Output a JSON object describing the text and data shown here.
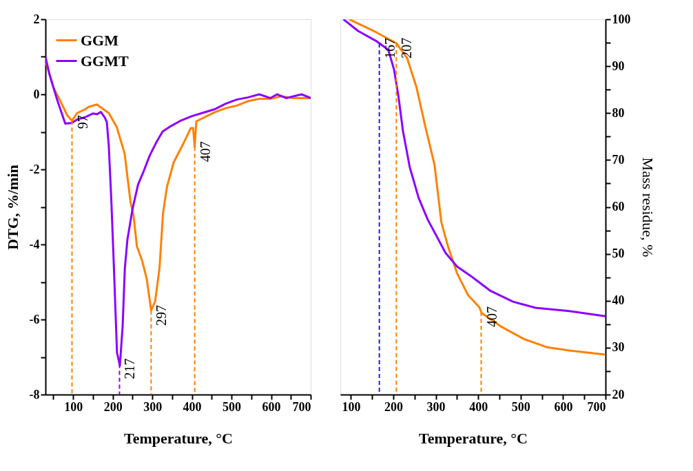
{
  "chart_data": [
    {
      "type": "line",
      "xlabel": "Temperature, °C",
      "ylabel": "DTG, %/min",
      "xlim": [
        30,
        700
      ],
      "xticks": [
        {
          "value": 50,
          "label": null
        },
        100,
        {
          "value": 150,
          "label": null
        },
        200,
        {
          "value": 250,
          "label": null
        },
        300,
        {
          "value": 350,
          "label": null
        },
        400,
        {
          "value": 450,
          "label": null
        },
        500,
        {
          "value": 550,
          "label": null
        },
        600,
        {
          "value": 650,
          "label": null
        },
        700
      ],
      "ylim": [
        -8,
        2
      ],
      "yticks": [
        -8,
        {
          "value": -7,
          "label": null
        },
        -6,
        {
          "value": -5,
          "label": null
        },
        -4,
        {
          "value": -3,
          "label": null
        },
        -2,
        {
          "value": -1,
          "label": null
        },
        0,
        {
          "value": 1,
          "label": null
        },
        2
      ],
      "grid": false,
      "legend": "top left",
      "marker": "none",
      "line_style": "solid",
      "series": [
        {
          "name": "GGM",
          "color": "#ff8000",
          "x": [
            30,
            50,
            70,
            85,
            97,
            110,
            130,
            140,
            160,
            170,
            190,
            210,
            230,
            245,
            252.5,
            261,
            275,
            286,
            297,
            307,
            318,
            327,
            337,
            354,
            377,
            397,
            403,
            407,
            411,
            434,
            457,
            485,
            513,
            542,
            570,
            598,
            626,
            655,
            700
          ],
          "values": [
            0.9,
            0.18,
            -0.23,
            -0.56,
            -0.7,
            -0.5,
            -0.4,
            -0.33,
            -0.27,
            -0.35,
            -0.5,
            -0.87,
            -1.58,
            -2.88,
            -3.23,
            -4.05,
            -4.46,
            -4.93,
            -5.76,
            -5.52,
            -4.64,
            -3.17,
            -2.46,
            -1.81,
            -1.34,
            -0.9,
            -0.9,
            -1.4,
            -0.72,
            -0.6,
            -0.48,
            -0.37,
            -0.3,
            -0.18,
            -0.12,
            -0.12,
            -0.05,
            -0.1,
            -0.1
          ]
        },
        {
          "name": "GGMT",
          "color": "#8b00ff",
          "x": [
            30,
            40,
            60,
            80,
            97,
            110,
            130,
            150,
            160,
            170,
            180,
            185,
            190,
            196.6,
            202,
            210.7,
            218,
            225,
            230.5,
            237,
            250,
            264,
            278,
            293,
            310,
            326,
            343,
            372,
            400,
            428,
            457,
            485,
            513,
            542,
            570,
            598,
            615,
            638,
            677,
            700
          ],
          "values": [
            1.0,
            0.54,
            -0.16,
            -0.78,
            -0.76,
            -0.67,
            -0.61,
            -0.51,
            -0.53,
            -0.47,
            -0.62,
            -0.74,
            -1.38,
            -2.88,
            -4.35,
            -6.88,
            -7.23,
            -6.17,
            -4.64,
            -3.87,
            -3.05,
            -2.4,
            -2.05,
            -1.64,
            -1.28,
            -0.99,
            -0.87,
            -0.7,
            -0.58,
            -0.49,
            -0.4,
            -0.25,
            -0.14,
            -0.08,
            0.0,
            -0.1,
            0.0,
            -0.1,
            0.0,
            -0.1
          ]
        }
      ],
      "ref_lines": [
        {
          "axis": "x",
          "value": 97,
          "label": "97",
          "color": "#ff8000",
          "line_style": "dashed"
        },
        {
          "axis": "x",
          "value": 217,
          "label": "217",
          "color": "#8b00ff",
          "line_style": "dashed"
        },
        {
          "axis": "x",
          "value": 297,
          "label": "297",
          "color": "#ff8000",
          "line_style": "dashed"
        },
        {
          "axis": "x",
          "value": 407,
          "label": "407",
          "color": "#ff8000",
          "line_style": "dashed"
        }
      ]
    },
    {
      "type": "line",
      "xlabel": "Temperature, °C",
      "y2label": "Mass residue, %",
      "xlim": [
        75,
        700
      ],
      "xticks": [
        100,
        {
          "value": 150,
          "label": null
        },
        200,
        {
          "value": 250,
          "label": null
        },
        300,
        {
          "value": 350,
          "label": null
        },
        400,
        {
          "value": 450,
          "label": null
        },
        500,
        {
          "value": 550,
          "label": null
        },
        600,
        {
          "value": 650,
          "label": null
        },
        700
      ],
      "y2lim": [
        20,
        100
      ],
      "y2ticks": [
        20,
        {
          "value": 25,
          "label": null
        },
        30,
        {
          "value": 35,
          "label": null
        },
        40,
        {
          "value": 45,
          "label": null
        },
        50,
        {
          "value": 55,
          "label": null
        },
        60,
        {
          "value": 65,
          "label": null
        },
        70,
        {
          "value": 75,
          "label": null
        },
        80,
        {
          "value": 85,
          "label": null
        },
        90,
        {
          "value": 95,
          "label": null
        },
        100
      ],
      "grid": false,
      "marker": "none",
      "line_style": "solid",
      "series": [
        {
          "color": "#ff8000",
          "axis": "y2",
          "x": [
            96,
            154,
            207,
            233,
            254.5,
            275.6,
            297,
            313,
            328.7,
            350,
            376,
            402.7,
            408,
            455.7,
            508.6,
            561.5,
            614.5,
            700
          ],
          "values": [
            100,
            97.5,
            94.9,
            91.6,
            85.5,
            77,
            69,
            56.8,
            51.6,
            45.9,
            41.2,
            38.6,
            37.4,
            34.4,
            31.8,
            30.1,
            29.4,
            28.5
          ]
        },
        {
          "color": "#8b00ff",
          "axis": "y2",
          "x": [
            82.5,
            117,
            159,
            188,
            201.6,
            212,
            222.8,
            238.6,
            259.7,
            281,
            323,
            350,
            386.8,
            429,
            482,
            535,
            614.5,
            700
          ],
          "values": [
            100,
            97.5,
            95.4,
            93.5,
            89.3,
            83.6,
            76.1,
            68.5,
            61.9,
            57.3,
            50.2,
            47.3,
            45,
            42.1,
            39.8,
            38.5,
            37.8,
            36.7
          ]
        }
      ],
      "ref_lines": [
        {
          "axis": "x",
          "value": 167,
          "label": "167",
          "color": "#1a1aff",
          "line_style": "dashed"
        },
        {
          "axis": "x",
          "value": 207,
          "label": "207",
          "color": "#ff8000",
          "line_style": "dashed"
        },
        {
          "axis": "x",
          "value": 407,
          "label": "407",
          "color": "#ff8000",
          "line_style": "dashed"
        }
      ]
    }
  ]
}
